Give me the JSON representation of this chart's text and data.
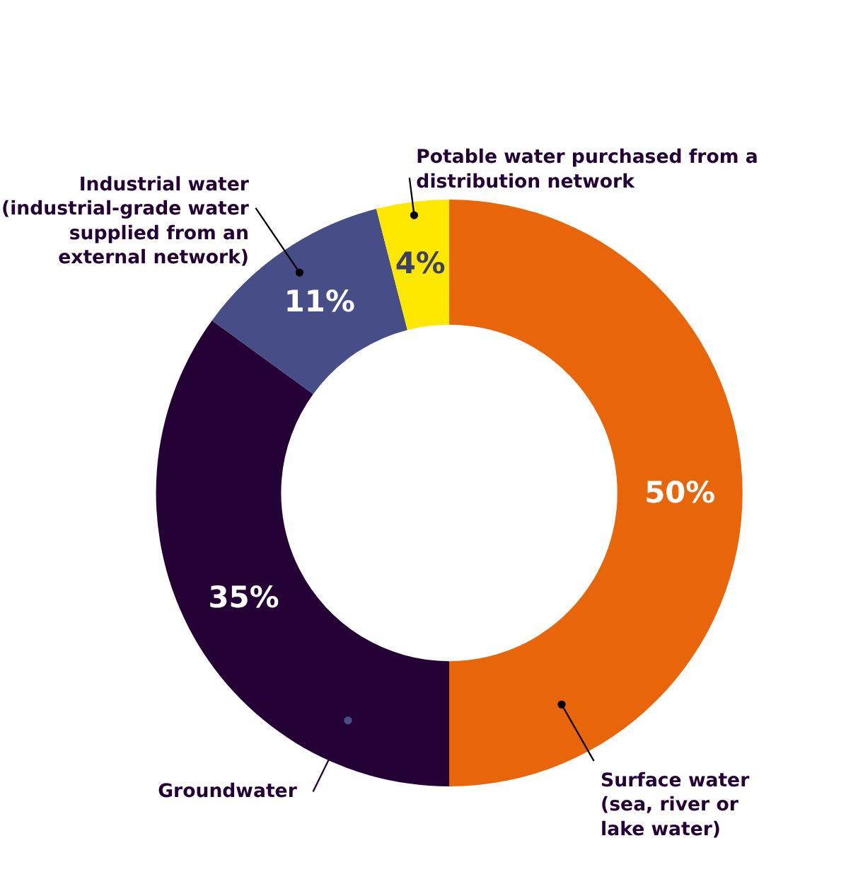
{
  "chart_data": {
    "type": "donut",
    "categories": [
      "Surface water (sea, river or lake water)",
      "Groundwater",
      "Industrial water (industrial-grade water supplied from an external network)",
      "Potable water purchased from a distribution network"
    ],
    "values": [
      50,
      35,
      11,
      4
    ],
    "colors": [
      "#e8650a",
      "#250236",
      "#474d86",
      "#ffe800"
    ],
    "value_labels": [
      "50%",
      "35%",
      "11%",
      "4%"
    ]
  }
}
